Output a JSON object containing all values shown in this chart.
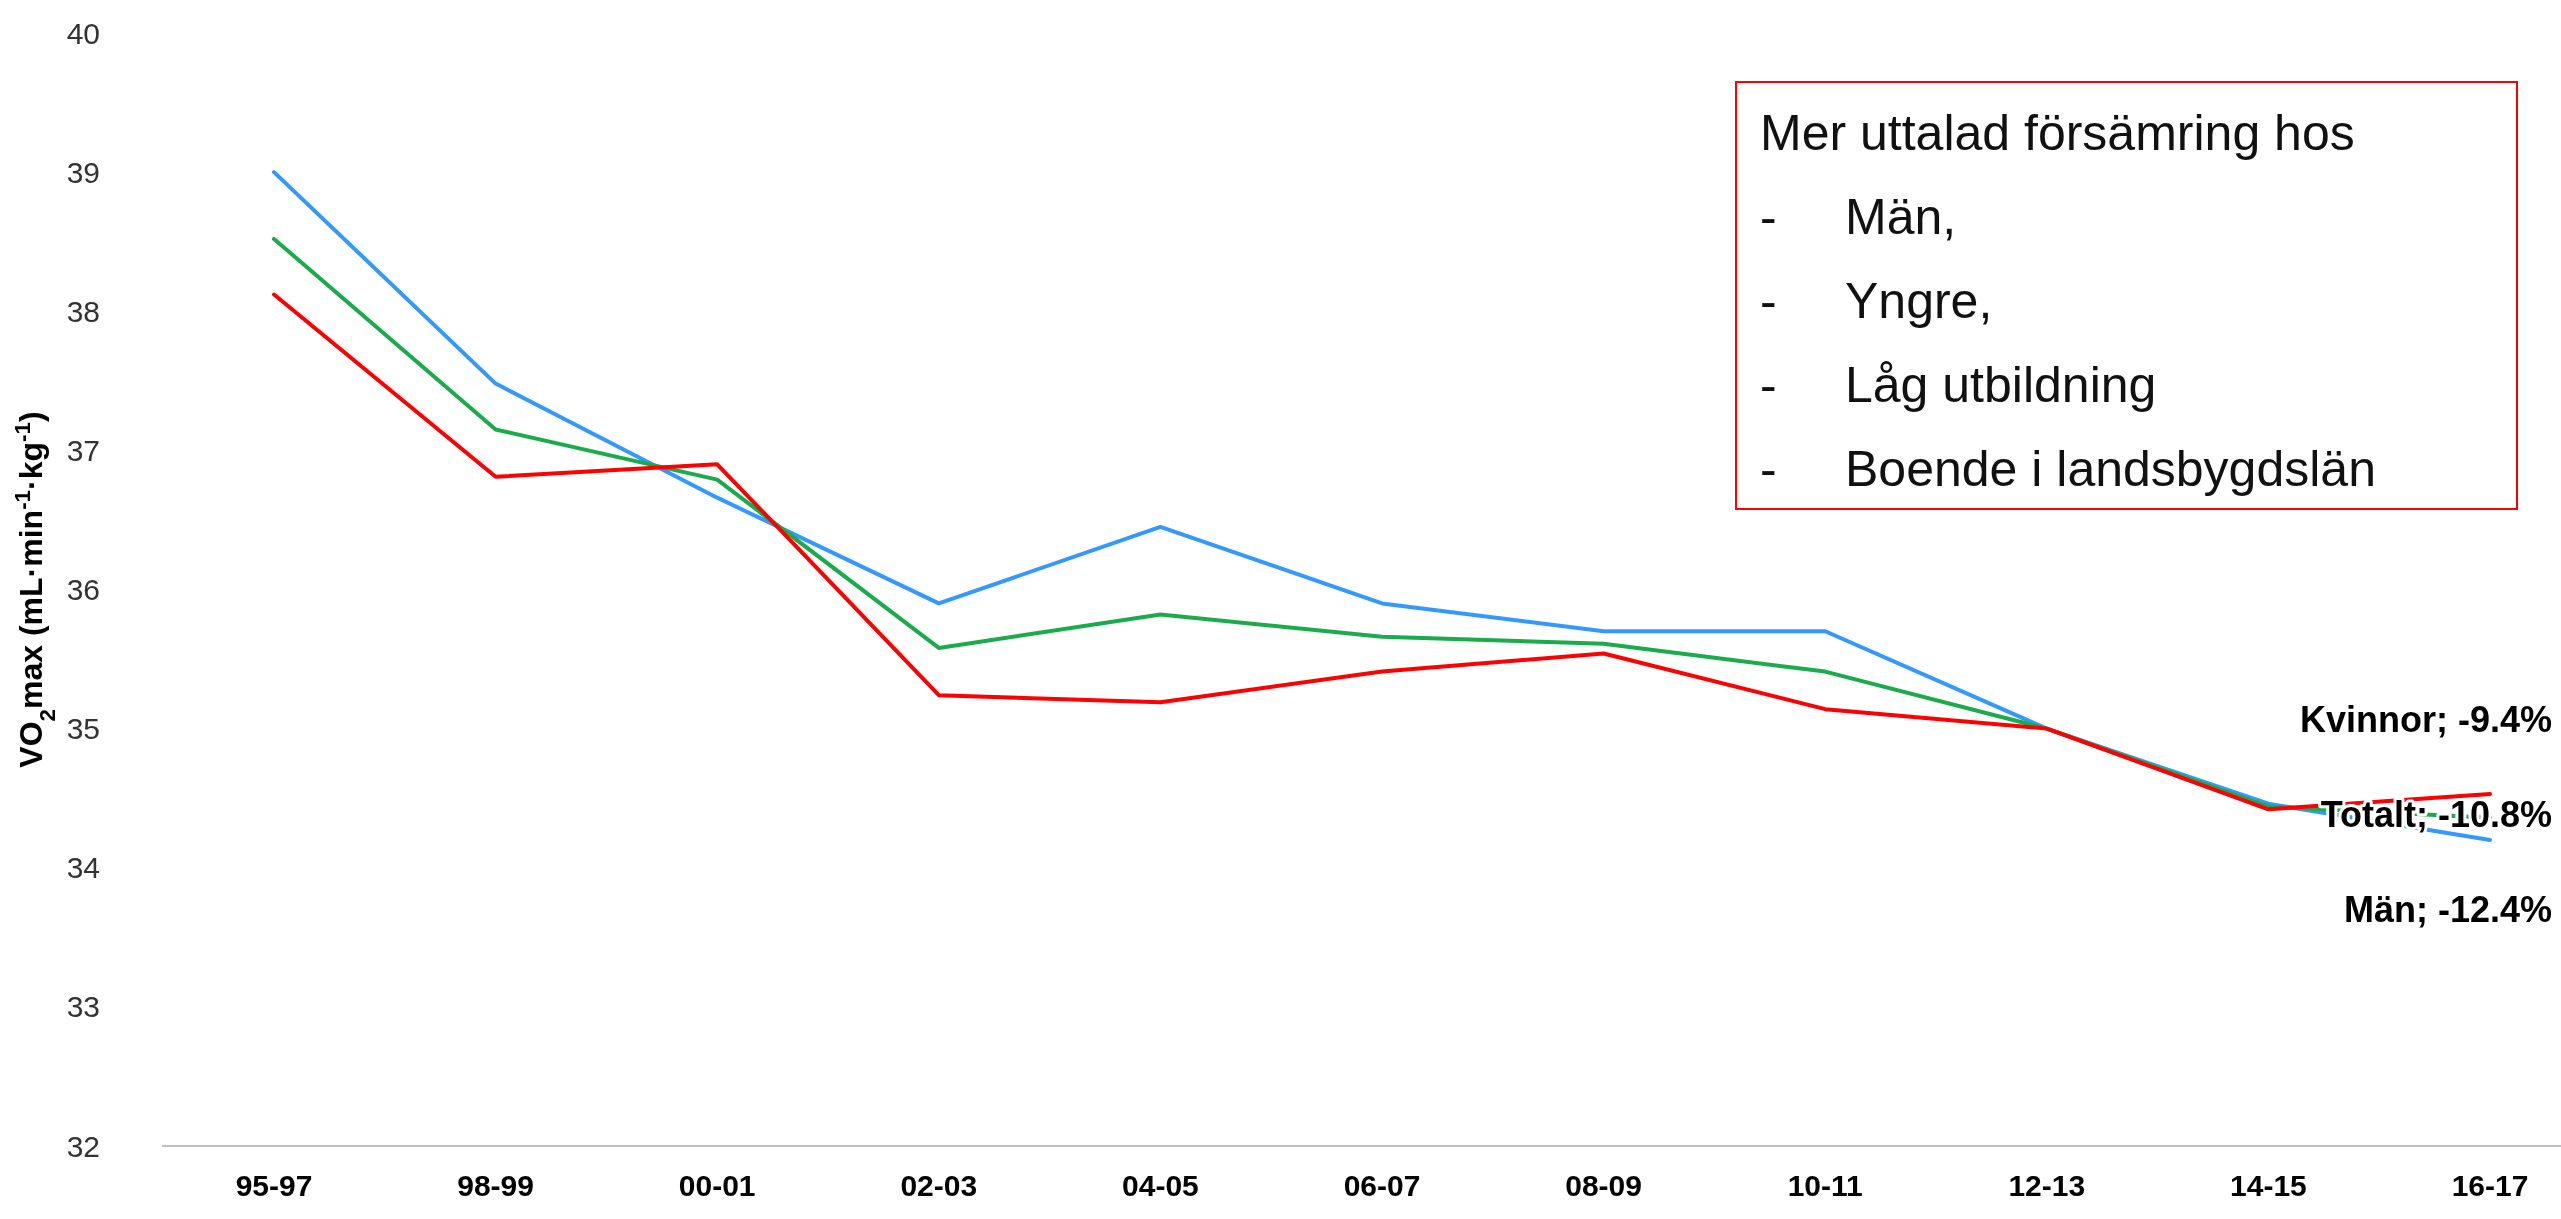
{
  "chart_data": {
    "type": "line",
    "ylabel": "VO$_{2}$max (mL·min$^{-1}$·kg$^{-1}$)",
    "categories": [
      "95-97",
      "98-99",
      "00-01",
      "02-03",
      "04-05",
      "06-07",
      "08-09",
      "10-11",
      "12-13",
      "14-15",
      "16-17"
    ],
    "series": [
      {
        "name": "Män; -12.4%",
        "color": "#3399ff",
        "values": [
          39.0,
          37.48,
          36.66,
          35.9,
          36.45,
          35.9,
          35.7,
          35.7,
          35.0,
          34.46,
          34.2
        ]
      },
      {
        "name": "Totalt; -10.8%",
        "color": "#1aab4b",
        "values": [
          38.52,
          37.15,
          36.79,
          35.58,
          35.82,
          35.66,
          35.61,
          35.41,
          35.0,
          34.44,
          34.36
        ]
      },
      {
        "name": "Kvinnor; -9.4%",
        "color": "#ff0000",
        "values": [
          38.12,
          36.81,
          36.9,
          35.24,
          35.19,
          35.41,
          35.54,
          35.14,
          35.0,
          34.42,
          34.53
        ]
      }
    ],
    "ylim": [
      32,
      40
    ],
    "yticks": [
      32,
      33,
      34,
      35,
      36,
      37,
      38,
      39,
      40
    ],
    "grid": false,
    "marker": "none",
    "line_style": "solid",
    "annotations": [
      "Mer uttalad försämring hos\n-\tMän,\n-\tYngre,\n-\tLåg utbildning\n-\tBoende i landsbygdslän"
    ]
  }
}
